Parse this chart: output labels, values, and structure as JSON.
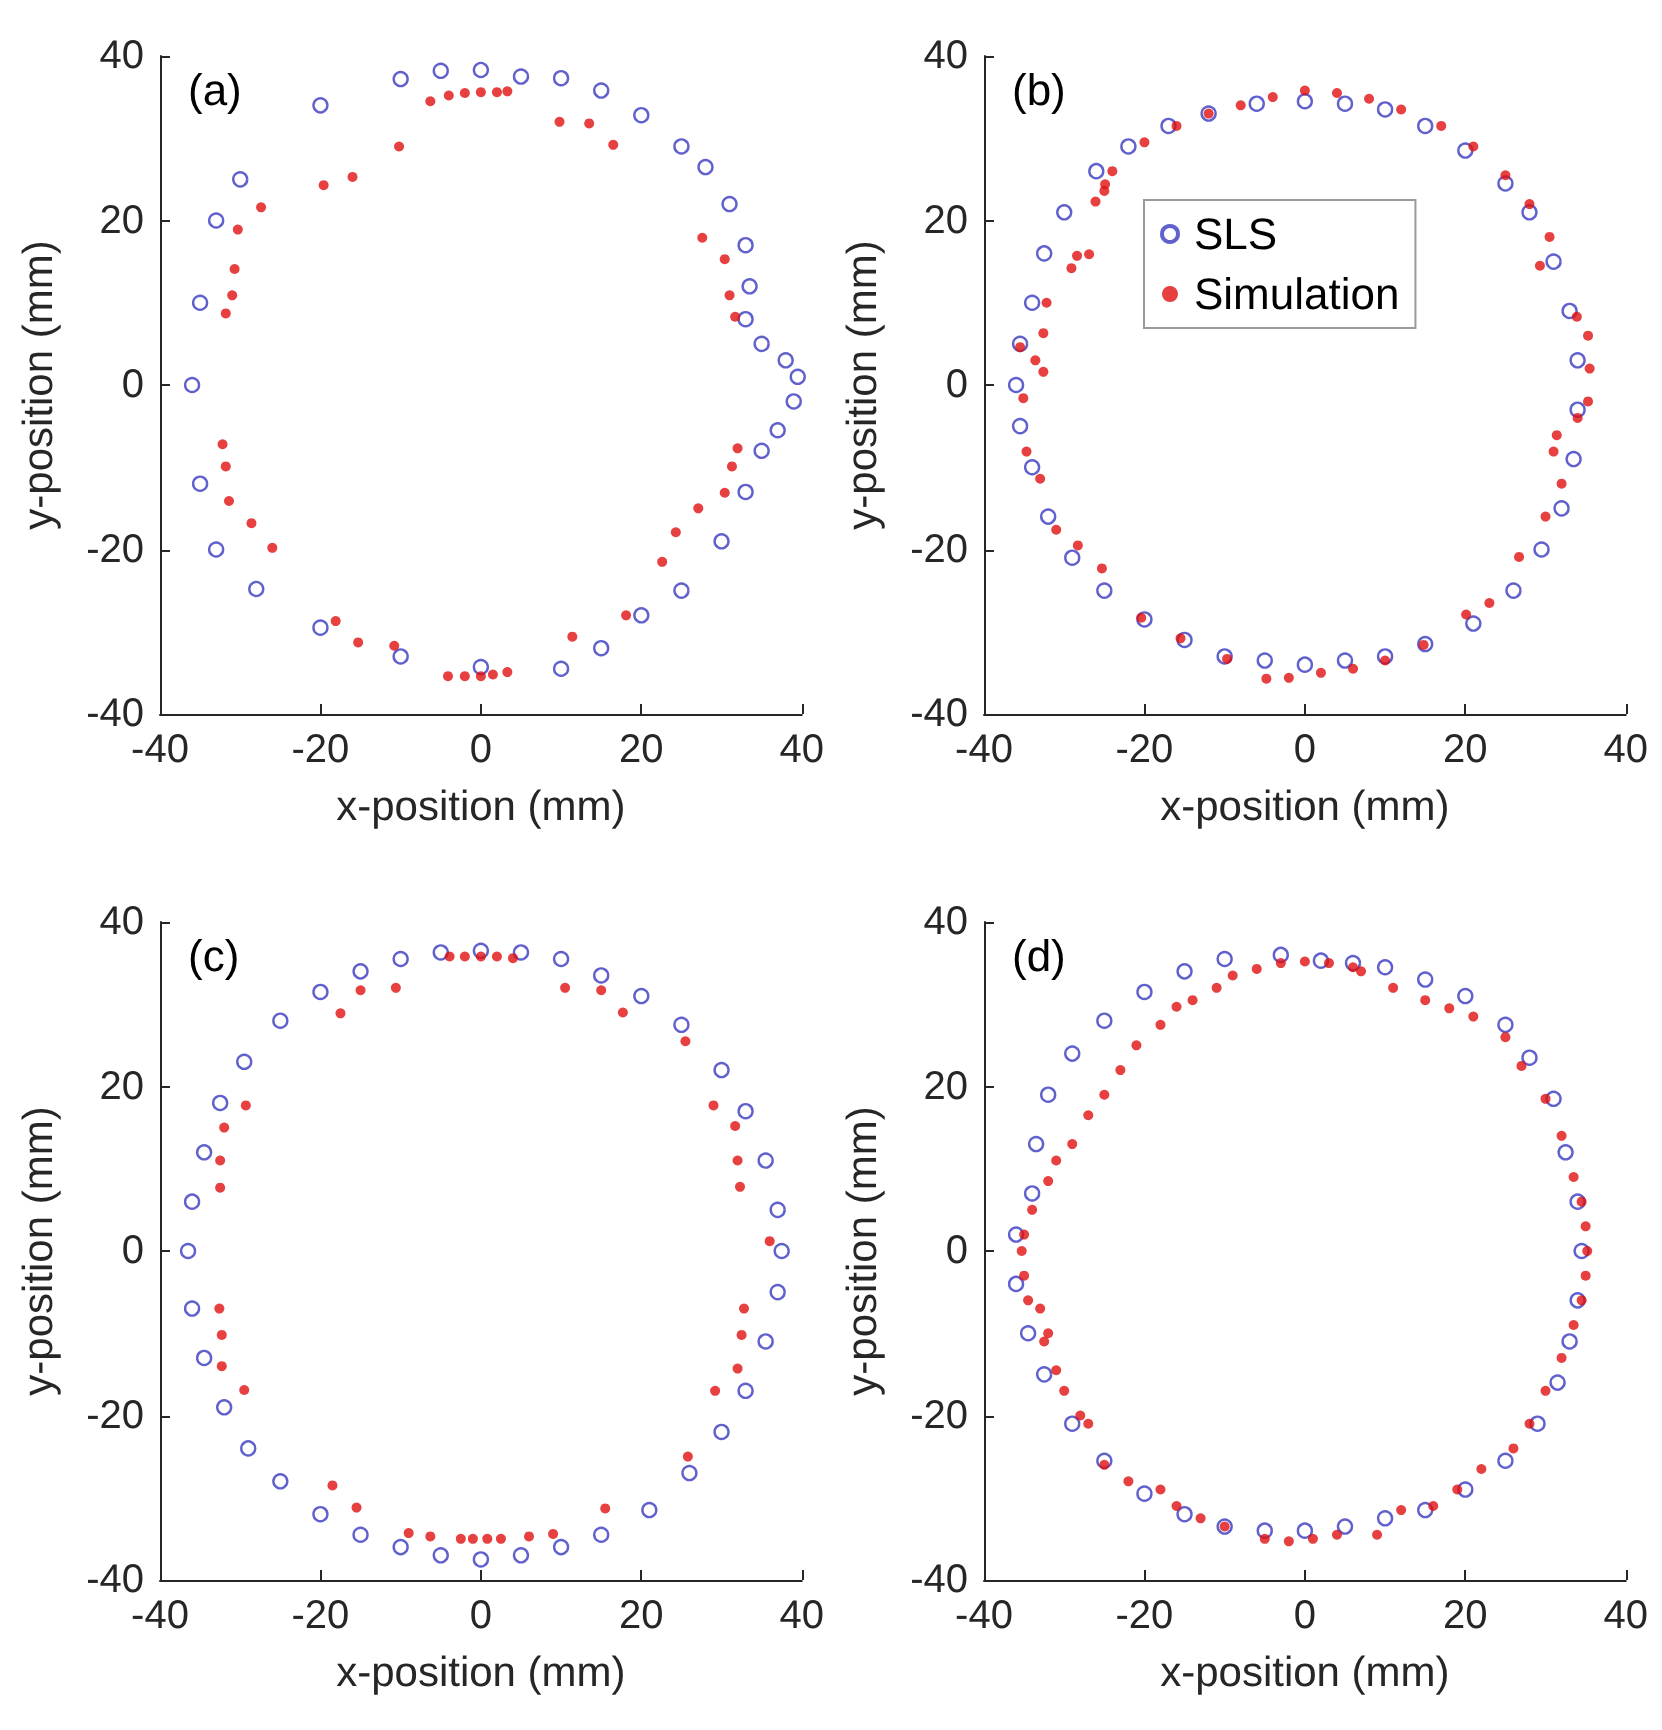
{
  "chart_data": [
    {
      "type": "scatter",
      "xlabel": "x-position (mm)",
      "ylabel": "y-position (mm)",
      "annotations": [
        "(a)"
      ],
      "xlim": [
        -40,
        40
      ],
      "ylim": [
        -40,
        40
      ],
      "xticks": [
        -40,
        -20,
        0,
        20,
        40
      ],
      "yticks": [
        -40,
        -20,
        0,
        20,
        40
      ],
      "grid": false,
      "legend": false,
      "marker": "circle",
      "series": [
        {
          "color": "#3a3ac0",
          "x": [
            -5,
            0,
            5,
            10,
            15,
            20,
            25,
            28,
            31,
            33,
            33.5,
            33,
            35,
            38,
            39.5,
            39,
            37,
            35,
            33,
            30,
            25,
            20,
            15,
            10,
            0,
            -10,
            -20,
            -28,
            -33,
            -35,
            -36,
            -35,
            -33,
            -30,
            -20,
            -10
          ],
          "values": [
            38.2,
            38.3,
            37.5,
            37.3,
            35.8,
            32.8,
            29,
            26.5,
            22,
            17,
            12,
            8,
            5,
            3,
            1,
            -2,
            -5.5,
            -8,
            -13,
            -19,
            -25,
            -28,
            -32,
            -34.5,
            -34.3,
            -33,
            -29.5,
            -24.8,
            -20,
            -12,
            0,
            10,
            20,
            25,
            34,
            37.2
          ]
        },
        {
          "color": "#e01010",
          "x": [
            -6.3,
            -4,
            -2,
            0,
            2,
            3.3,
            9.8,
            13.5,
            16.5,
            -10.2,
            -16,
            -19.6,
            -27.4,
            -30.3,
            -30.7,
            -31,
            -31.8,
            27.6,
            30.4,
            31,
            31.7,
            -32.2,
            -31.8,
            -31.4,
            -28.6,
            -26,
            -18.1,
            -15.3,
            -10.8,
            -4.1,
            -2,
            0,
            1.5,
            3.3,
            11.4,
            18.1,
            22.6,
            24.3,
            27.1,
            30.4,
            31.3,
            32
          ],
          "values": [
            34.5,
            35.2,
            35.5,
            35.6,
            35.6,
            35.7,
            32,
            31.8,
            29.2,
            29,
            25.3,
            24.3,
            21.6,
            18.9,
            14.1,
            10.9,
            8.7,
            17.9,
            15.3,
            10.9,
            8.3,
            -7.2,
            -9.9,
            -14.1,
            -16.8,
            -19.8,
            -28.7,
            -31.3,
            -31.7,
            -35.4,
            -35.4,
            -35.4,
            -35.2,
            -34.9,
            -30.6,
            -28,
            -21.5,
            -17.9,
            -15,
            -13.1,
            -9.9,
            -7.7
          ]
        }
      ]
    },
    {
      "type": "scatter",
      "xlabel": "x-position (mm)",
      "ylabel": "y-position (mm)",
      "annotations": [
        "(b)"
      ],
      "xlim": [
        -40,
        40
      ],
      "ylim": [
        -40,
        40
      ],
      "xticks": [
        -40,
        -20,
        0,
        20,
        40
      ],
      "yticks": [
        -40,
        -20,
        0,
        20,
        40
      ],
      "grid": false,
      "legend": "top",
      "marker": "circle",
      "series": [
        {
          "name": "SLS",
          "color": "#3a3ac0",
          "x": [
            0,
            5,
            10,
            15,
            20,
            25,
            28,
            31,
            33,
            34,
            34,
            33.5,
            32,
            29.5,
            26,
            21,
            15,
            10,
            5,
            0,
            -5,
            -10,
            -15,
            -20,
            -25,
            -29,
            -32,
            -34,
            -35.5,
            -36,
            -35.5,
            -34,
            -32.5,
            -30,
            -26,
            -22,
            -17,
            -12,
            -6
          ],
          "values": [
            34.5,
            34.2,
            33.5,
            31.5,
            28.5,
            24.5,
            21,
            15,
            9,
            3,
            -3,
            -9,
            -15,
            -20,
            -25,
            -29,
            -31.5,
            -33,
            -33.5,
            -34,
            -33.5,
            -33,
            -31,
            -28.5,
            -25,
            -21,
            -16,
            -10,
            -5,
            0,
            5,
            10,
            16,
            21,
            26,
            29,
            31.5,
            33,
            34.2
          ]
        },
        {
          "name": "Simulation",
          "color": "#e01010",
          "x": [
            -29.1,
            -28.4,
            -26.9,
            -26.1,
            -25,
            -24.9,
            -32.2,
            -32.6,
            -33.6,
            -32.6,
            -35.5,
            -35.1,
            -34.7,
            -33,
            -31,
            -28.3,
            -25.3,
            -20.4,
            -15.5,
            -9.7,
            -4.8,
            -2,
            2,
            6,
            10,
            14.8,
            20.1,
            23,
            26.7,
            30,
            32,
            31,
            31.4,
            34,
            35.3,
            35.5,
            35.3,
            33.9,
            29.3,
            30.5,
            28,
            25,
            21,
            17,
            12,
            8,
            4,
            0,
            -4,
            -8,
            -12,
            -16,
            -20,
            -24
          ],
          "values": [
            14.2,
            15.7,
            15.9,
            22.3,
            23.6,
            24.4,
            10,
            6.3,
            3,
            1.6,
            4.6,
            -1.6,
            -8.1,
            -11.4,
            -17.6,
            -19.5,
            -22.3,
            -28.3,
            -30.8,
            -33.3,
            -35.7,
            -35.6,
            -35,
            -34.5,
            -33.5,
            -31.6,
            -27.9,
            -26.5,
            -20.9,
            -16,
            -12,
            -8.1,
            -6.1,
            -4,
            -2,
            2,
            6,
            8.3,
            14.5,
            18,
            22,
            25.5,
            29,
            31.5,
            33.5,
            34.8,
            35.5,
            35.8,
            35,
            34,
            33,
            31.5,
            29.5,
            26
          ]
        }
      ]
    },
    {
      "type": "scatter",
      "xlabel": "x-position (mm)",
      "ylabel": "y-position (mm)",
      "annotations": [
        "(c)"
      ],
      "xlim": [
        -40,
        40
      ],
      "ylim": [
        -40,
        40
      ],
      "xticks": [
        -40,
        -20,
        0,
        20,
        40
      ],
      "yticks": [
        -40,
        -20,
        0,
        20,
        40
      ],
      "grid": false,
      "legend": false,
      "marker": "circle",
      "series": [
        {
          "color": "#3a3ac0",
          "x": [
            0,
            5,
            10,
            15,
            20,
            25,
            30,
            33,
            35.5,
            37,
            37.5,
            37,
            35.5,
            33,
            30,
            26,
            21,
            15,
            10,
            5,
            0,
            -5,
            -10,
            -15,
            -20,
            -25,
            -29,
            -32,
            -34.5,
            -36,
            -36.5,
            -36,
            -34.5,
            -32.5,
            -29.5,
            -25,
            -20,
            -15,
            -10,
            -5
          ],
          "values": [
            36.5,
            36.3,
            35.5,
            33.5,
            31,
            27.5,
            22,
            17,
            11,
            5,
            0,
            -5,
            -11,
            -17,
            -22,
            -27,
            -31.5,
            -34.5,
            -36,
            -37,
            -37.5,
            -37,
            -36,
            -34.5,
            -32,
            -28,
            -24,
            -19,
            -13,
            -7,
            0,
            6,
            12,
            18,
            23,
            28,
            31.5,
            34,
            35.5,
            36.3
          ]
        },
        {
          "color": "#e01010",
          "x": [
            -3.9,
            -2,
            0,
            2,
            4,
            -15,
            -10.6,
            -17.5,
            10.5,
            15,
            17.7,
            25.5,
            29,
            31.7,
            32,
            32.3,
            36,
            32.8,
            32.5,
            32,
            29.2,
            25.8,
            15.5,
            9,
            6,
            2.5,
            0.8,
            -1,
            -2.5,
            -6.3,
            -9,
            -15.5,
            -18.5,
            -29.5,
            -32.3,
            -32.3,
            -32.6,
            -32.5,
            -32.5,
            -32,
            -29.3
          ],
          "values": [
            35.8,
            35.8,
            35.8,
            35.8,
            35.6,
            31.7,
            32,
            28.9,
            32,
            31.7,
            29,
            25.5,
            17.7,
            15.2,
            11,
            7.8,
            1.2,
            -7,
            -10.2,
            -14.3,
            -17,
            -25,
            -31.3,
            -34.4,
            -34.7,
            -35,
            -35,
            -35,
            -35,
            -34.7,
            -34.3,
            -31.2,
            -28.5,
            -16.9,
            -14,
            -10.2,
            -7,
            7.7,
            11,
            15,
            17.7
          ]
        }
      ]
    },
    {
      "type": "scatter",
      "xlabel": "x-position (mm)",
      "ylabel": "y-position (mm)",
      "annotations": [
        "(d)"
      ],
      "xlim": [
        -40,
        40
      ],
      "ylim": [
        -40,
        40
      ],
      "xticks": [
        -40,
        -20,
        0,
        20,
        40
      ],
      "yticks": [
        -40,
        -20,
        0,
        20,
        40
      ],
      "grid": false,
      "legend": false,
      "marker": "circle",
      "series": [
        {
          "color": "#3a3ac0",
          "x": [
            -3,
            2,
            6,
            10,
            15,
            20,
            25,
            28,
            31,
            32.5,
            34,
            34.5,
            34,
            33,
            31.5,
            29,
            25,
            20,
            15,
            10,
            5,
            0,
            -5,
            -10,
            -15,
            -20,
            -25,
            -29,
            -32.5,
            -34.5,
            -36,
            -36,
            -34,
            -33.5,
            -32,
            -29,
            -25,
            -20,
            -15,
            -10
          ],
          "values": [
            36,
            35.3,
            35,
            34.5,
            33,
            31,
            27.5,
            23.5,
            18.5,
            12,
            6,
            0,
            -6,
            -11,
            -16,
            -21,
            -25.5,
            -29,
            -31.5,
            -32.5,
            -33.5,
            -34,
            -34,
            -33.5,
            -32,
            -29.5,
            -25.5,
            -21,
            -15,
            -10,
            -4,
            2,
            7,
            13,
            19,
            24,
            28,
            31.5,
            34,
            35.5
          ]
        },
        {
          "color": "#e01010",
          "x": [
            0,
            -3,
            3,
            6,
            -6,
            -9,
            -11,
            -14,
            -16,
            -18,
            -21,
            -23,
            -25,
            -27,
            -29,
            -31,
            -32,
            -34,
            -35,
            -35.3,
            -35,
            -34.5,
            -33,
            -32,
            -32.5,
            -31,
            -30,
            -28,
            -27,
            -25,
            -22,
            -18,
            -16,
            -13,
            -10,
            -5,
            -2,
            1,
            4,
            9,
            12,
            16,
            19,
            22,
            26,
            28,
            30,
            32,
            33.5,
            34.5,
            35,
            35.2,
            35,
            34.5,
            33.5,
            32,
            30,
            27,
            25,
            21,
            18,
            15,
            11,
            7
          ],
          "values": [
            35.2,
            35,
            35,
            34.5,
            34.3,
            33.5,
            32,
            30.5,
            29.7,
            27.5,
            25,
            22,
            19,
            16.5,
            13,
            11,
            8.5,
            5,
            2,
            0,
            -3,
            -6,
            -7,
            -10,
            -11,
            -14.5,
            -17,
            -20,
            -21,
            -26,
            -28,
            -29,
            -31,
            -32.5,
            -33.5,
            -35,
            -35.3,
            -35,
            -34.5,
            -34.5,
            -31.5,
            -31,
            -29,
            -26.5,
            -24,
            -21,
            -17,
            -13,
            -9,
            -6,
            -3,
            0,
            3,
            6,
            9,
            14,
            18.5,
            22.5,
            26,
            28.5,
            29.5,
            30.5,
            32,
            34
          ]
        }
      ]
    }
  ]
}
